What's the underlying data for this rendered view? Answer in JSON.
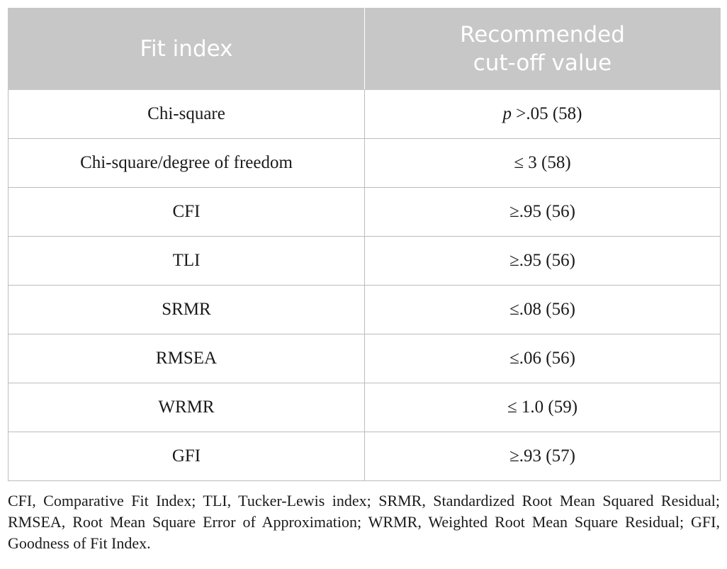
{
  "table": {
    "headers": [
      "Fit index",
      "Recommended\ncut-off value"
    ],
    "rows": [
      {
        "index": "Chi-square",
        "value_prefix": "p",
        "value": " >.05 (58)"
      },
      {
        "index": "Chi-square/degree of freedom",
        "value_prefix": "",
        "value": "≤ 3 (58)"
      },
      {
        "index": "CFI",
        "value_prefix": "",
        "value": "≥.95 (56)"
      },
      {
        "index": "TLI",
        "value_prefix": "",
        "value": "≥.95 (56)"
      },
      {
        "index": "SRMR",
        "value_prefix": "",
        "value": "≤.08 (56)"
      },
      {
        "index": "RMSEA",
        "value_prefix": "",
        "value": "≤.06 (56)"
      },
      {
        "index": "WRMR",
        "value_prefix": "",
        "value": "≤ 1.0 (59)"
      },
      {
        "index": "GFI",
        "value_prefix": "",
        "value": "≥.93 (57)"
      }
    ]
  },
  "footnote": "CFI, Comparative Fit Index; TLI, Tucker-Lewis index; SRMR, Standardized Root Mean Squared Residual; RMSEA, Root Mean Square Error of Approximation; WRMR, Weighted Root Mean Square Residual; GFI, Goodness of Fit Index.",
  "colors": {
    "header_bg": "#c7c7c7",
    "header_text": "#ffffff",
    "border": "#bcbcbc"
  }
}
